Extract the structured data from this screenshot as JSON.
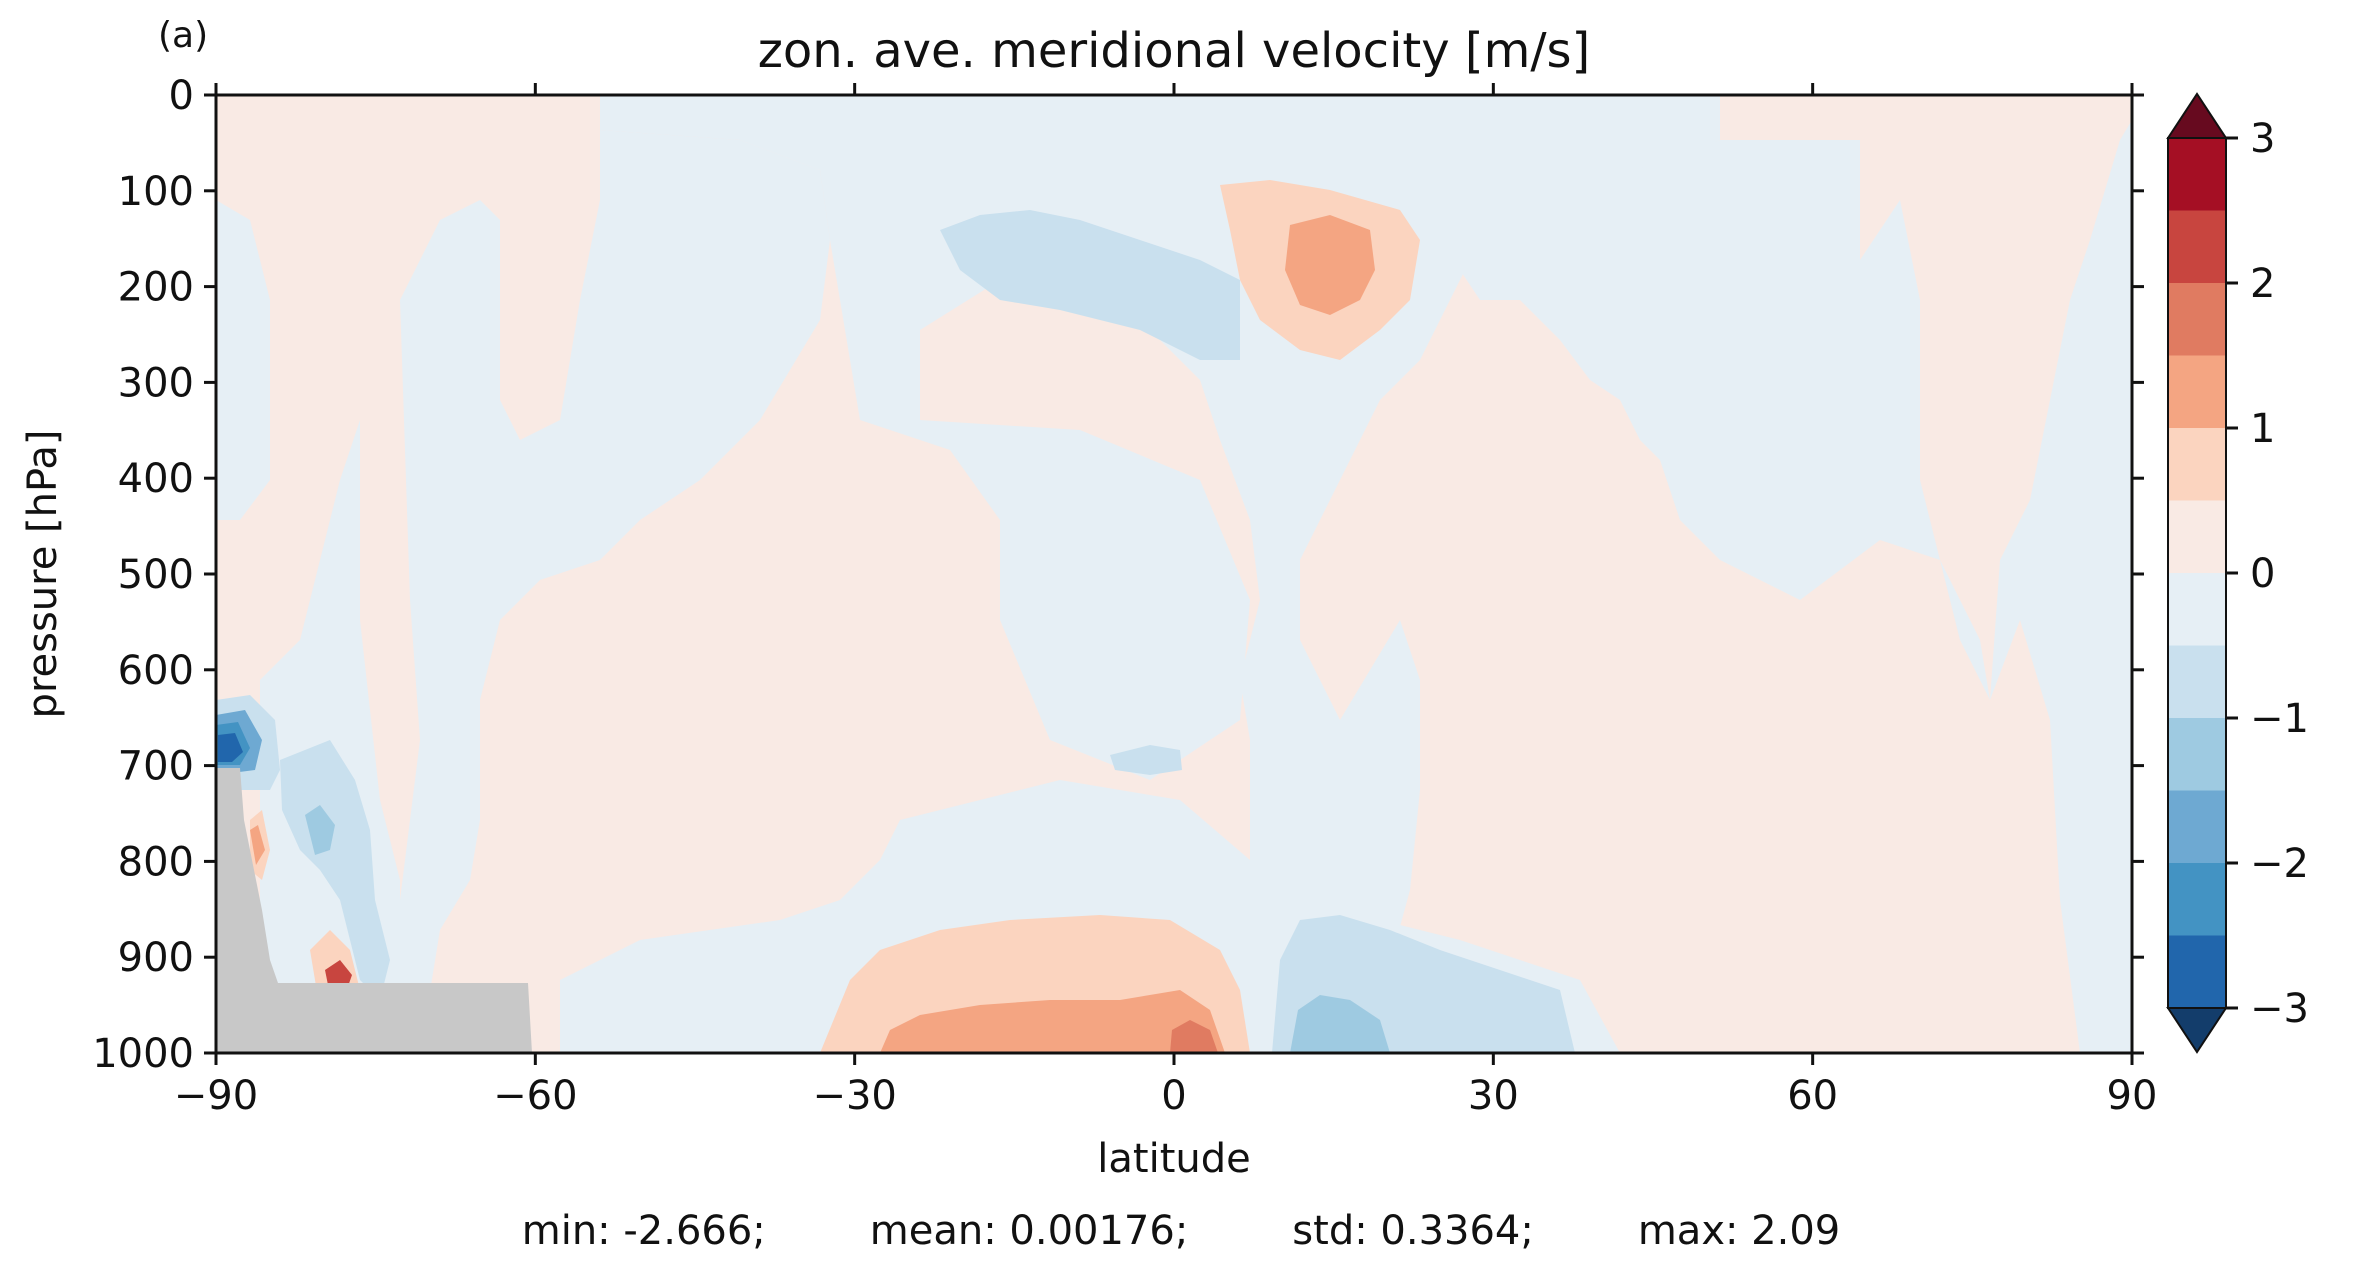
{
  "panel_label": "(a)",
  "chart_data": {
    "type": "heatmap",
    "title": "zon. ave. meridional velocity [m/s]",
    "xlabel": "latitude",
    "ylabel": "pressure [hPa]",
    "xlim": [
      -90,
      90
    ],
    "ylim": [
      1000,
      0
    ],
    "x_ticks": [
      "−90",
      "−60",
      "−30",
      "0",
      "30",
      "60",
      "90"
    ],
    "y_ticks": [
      "0",
      "100",
      "200",
      "300",
      "400",
      "500",
      "600",
      "700",
      "800",
      "900",
      "1000"
    ],
    "colorbar": {
      "ticks": [
        "3",
        "2",
        "1",
        "0",
        "−1",
        "−2",
        "−3"
      ],
      "levels": [
        -3,
        -2.5,
        -2,
        -1.5,
        -1,
        -0.5,
        0,
        0.5,
        1,
        1.5,
        2,
        2.5,
        3
      ],
      "colors": [
        "#133d6b",
        "#2166ac",
        "#4393c3",
        "#6ea9d2",
        "#9ecae1",
        "#c9e0ee",
        "#e6eff5",
        "#f9eae4",
        "#fbd4bf",
        "#f4a582",
        "#e07b61",
        "#c8453f",
        "#a50f24",
        "#670a1f"
      ],
      "extend": "both"
    },
    "regions": [
      {
        "level": 0.25,
        "desc": "broad weak northward flow band"
      },
      {
        "level": -0.25,
        "desc": "broad weak southward flow band"
      },
      {
        "level": 1.25,
        "desc": "upper-tropospheric northward maximum near 15N, 200 hPa"
      },
      {
        "level": 1.25,
        "desc": "lower-tropospheric northward maximum near 0-25S, 950 hPa"
      },
      {
        "level": -0.75,
        "desc": "upper-tropospheric southward flow near 10S, 200 hPa"
      },
      {
        "level": -1.25,
        "desc": "lower-tropospheric southward flow near 15N, 1000 hPa"
      },
      {
        "level": -2.75,
        "desc": "strong southward flow near 88S, 700 hPa"
      }
    ],
    "terrain_mask_color": "#c8c8c8",
    "grid": false,
    "legend": "colorbar-right"
  },
  "stats": {
    "min": "min: -2.666;",
    "mean": "mean: 0.00176;",
    "std": "std: 0.3364;",
    "max": "max: 2.09"
  }
}
